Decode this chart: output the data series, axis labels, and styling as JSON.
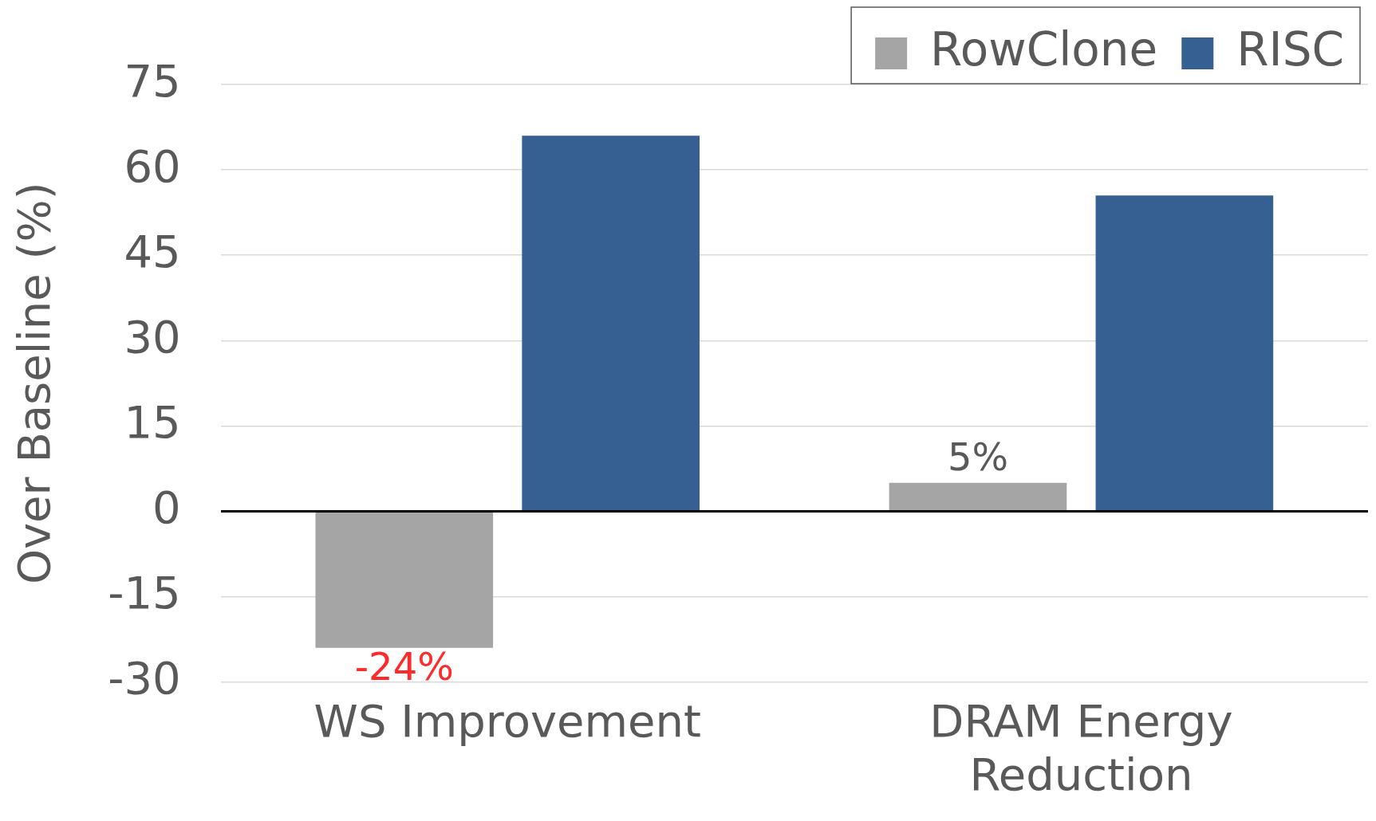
{
  "chart_data": {
    "type": "bar",
    "ylabel": "Over Baseline (%)",
    "categories": [
      "WS Improvement",
      "DRAM Energy Reduction"
    ],
    "series": [
      {
        "name": "RowClone",
        "color": "#a5a5a5",
        "values": [
          -24,
          5
        ],
        "value_labels": [
          "-24%",
          "5%"
        ]
      },
      {
        "name": "RISC",
        "color": "#376092",
        "values": [
          66,
          55.5
        ]
      }
    ],
    "ylim": [
      -30,
      75
    ],
    "yticks": [
      -30,
      -15,
      0,
      15,
      30,
      45,
      60,
      75
    ],
    "grid": "y",
    "legend": "top right"
  }
}
